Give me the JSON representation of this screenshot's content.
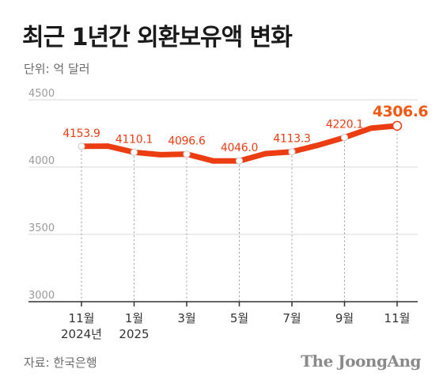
{
  "title": "최근 1년간 외환보유액 변화",
  "unit": "단위: 억 달러",
  "source": "자료: 한국은행",
  "logo": "The JoongAng",
  "colors": {
    "line": "#ec3d12",
    "highlight": "#f05a14",
    "grid": "#d9d9d9",
    "axis": "#333333",
    "text": "#555555"
  },
  "chart_data": {
    "type": "line",
    "ylim": [
      3000,
      4500
    ],
    "yticks": [
      3000,
      3500,
      4000,
      4500
    ],
    "grid": true,
    "categories": [
      "2024-11",
      "2024-12",
      "2025-01",
      "2025-02",
      "2025-03",
      "2025-04",
      "2025-05",
      "2025-06",
      "2025-07",
      "2025-08",
      "2025-09",
      "2025-10",
      "2025-11"
    ],
    "x_tick_labels": [
      {
        "category": "2024-11",
        "line1": "11월",
        "line2": "2024년"
      },
      {
        "category": "2025-01",
        "line1": "1월",
        "line2": "2025"
      },
      {
        "category": "2025-03",
        "line1": "3월",
        "line2": ""
      },
      {
        "category": "2025-05",
        "line1": "5월",
        "line2": ""
      },
      {
        "category": "2025-07",
        "line1": "7월",
        "line2": ""
      },
      {
        "category": "2025-09",
        "line1": "9월",
        "line2": ""
      },
      {
        "category": "2025-11",
        "line1": "11월",
        "line2": ""
      }
    ],
    "series": [
      {
        "values": [
          4153.9,
          4156.0,
          4110.1,
          4092.0,
          4096.6,
          4046.0,
          4046.0,
          4100.0,
          4113.3,
          4163.0,
          4220.1,
          4289.0,
          4306.6
        ]
      }
    ],
    "labels": [
      {
        "category": "2024-11",
        "text": "4153.9"
      },
      {
        "category": "2025-01",
        "text": "4110.1"
      },
      {
        "category": "2025-03",
        "text": "4096.6"
      },
      {
        "category": "2025-05",
        "text": "4046.0"
      },
      {
        "category": "2025-07",
        "text": "4113.3"
      },
      {
        "category": "2025-09",
        "text": "4220.1"
      },
      {
        "category": "2025-11",
        "text": "4306.6",
        "highlight": true
      }
    ]
  }
}
